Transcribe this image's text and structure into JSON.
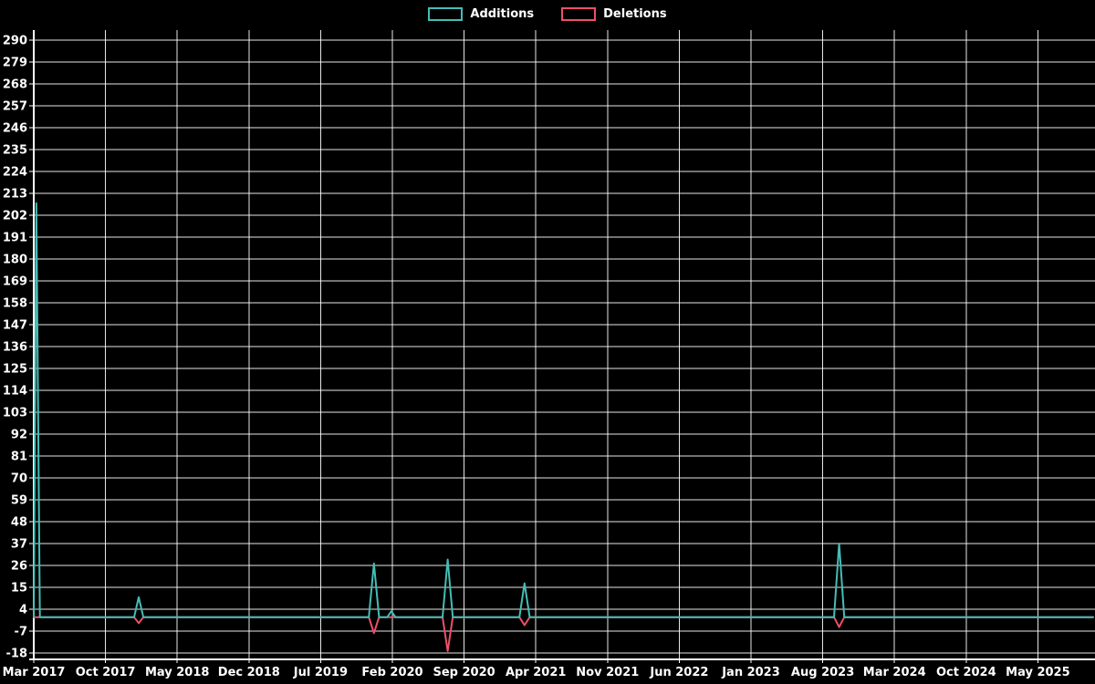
{
  "chart_data": {
    "type": "line",
    "title": "",
    "background_color": "#000000",
    "grid": true,
    "grid_color": "#ffffff",
    "axis_color": "#ffffff",
    "label_color": "#ffffff",
    "legend_position": "top-center",
    "x_axis": {
      "unit": "months_since_Mar_2017",
      "tick_labels": [
        "Mar 2017",
        "Oct 2017",
        "May 2018",
        "Dec 2018",
        "Jul 2019",
        "Feb 2020",
        "Sep 2020",
        "Apr 2021",
        "Nov 2021",
        "Jun 2022",
        "Jan 2023",
        "Aug 2023",
        "Mar 2024",
        "Oct 2024",
        "May 2025"
      ],
      "tick_months": [
        0,
        7,
        14,
        21,
        28,
        35,
        42,
        49,
        56,
        63,
        70,
        77,
        84,
        91,
        98
      ],
      "range_months": [
        0,
        103.4
      ]
    },
    "y_axis": {
      "ticks": [
        -18,
        -7,
        4,
        15,
        26,
        37,
        48,
        59,
        70,
        81,
        92,
        103,
        114,
        125,
        136,
        147,
        158,
        169,
        180,
        191,
        202,
        213,
        224,
        235,
        246,
        257,
        268,
        279,
        290
      ],
      "range": [
        -18,
        290
      ]
    },
    "series": [
      {
        "name": "Additions",
        "color": "#45bdb5",
        "points": [
          [
            0,
            0
          ],
          [
            0.25,
            208
          ],
          [
            0.6,
            0
          ],
          [
            9.8,
            0
          ],
          [
            10.24,
            10
          ],
          [
            10.7,
            0
          ],
          [
            32.7,
            0
          ],
          [
            33.2,
            27
          ],
          [
            33.7,
            0
          ],
          [
            34.5,
            0
          ],
          [
            34.9,
            3
          ],
          [
            35.3,
            0
          ],
          [
            39.9,
            0
          ],
          [
            40.4,
            29
          ],
          [
            40.9,
            0
          ],
          [
            47.4,
            0
          ],
          [
            47.9,
            17
          ],
          [
            48.4,
            0
          ],
          [
            78.1,
            0
          ],
          [
            78.6,
            37
          ],
          [
            79.1,
            0
          ],
          [
            103.4,
            0
          ]
        ]
      },
      {
        "name": "Deletions",
        "color": "#ee4f6a",
        "points": [
          [
            0,
            0
          ],
          [
            9.8,
            0
          ],
          [
            10.24,
            -3
          ],
          [
            10.7,
            0
          ],
          [
            32.7,
            0
          ],
          [
            33.2,
            -8
          ],
          [
            33.7,
            0
          ],
          [
            39.9,
            0
          ],
          [
            40.4,
            -17
          ],
          [
            40.9,
            0
          ],
          [
            47.4,
            0
          ],
          [
            47.9,
            -4
          ],
          [
            48.4,
            0
          ],
          [
            78.1,
            0
          ],
          [
            78.6,
            -5
          ],
          [
            79.1,
            0
          ],
          [
            103.4,
            0
          ]
        ]
      }
    ]
  }
}
